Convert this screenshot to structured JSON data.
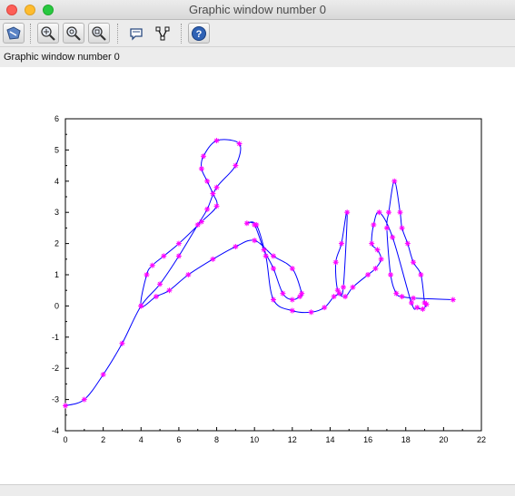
{
  "window": {
    "title": "Graphic window number 0"
  },
  "info": {
    "text": "Graphic window number 0"
  },
  "toolbar": {
    "buttons": [
      {
        "name": "rotate-tool-button",
        "icon": "rotate-icon"
      },
      {
        "name": "zoom-in-button",
        "icon": "zoom-in-icon"
      },
      {
        "name": "zoom-out-button",
        "icon": "zoom-out-icon"
      },
      {
        "name": "zoom-fit-button",
        "icon": "zoom-fit-icon"
      },
      {
        "name": "datatip-button",
        "icon": "speech-bubble-icon"
      },
      {
        "name": "datatip-edit-button",
        "icon": "polyline-edit-icon"
      },
      {
        "name": "help-button",
        "icon": "help-icon"
      }
    ]
  },
  "colors": {
    "curve": "#0000ff",
    "marker": "#ff00ff"
  },
  "chart_data": {
    "type": "line",
    "title": "",
    "xlabel": "",
    "ylabel": "",
    "xlim": [
      0,
      22
    ],
    "ylim": [
      -4,
      6
    ],
    "xticks": [
      "0",
      "2",
      "4",
      "6",
      "8",
      "10",
      "12",
      "14",
      "16",
      "18",
      "20",
      "22"
    ],
    "yticks": [
      "-4",
      "-3",
      "-2",
      "-1",
      "0",
      "1",
      "2",
      "3",
      "4",
      "5",
      "6"
    ],
    "grid": false,
    "legend": "none",
    "series": [
      {
        "marker": "*",
        "x": [
          0,
          1,
          2,
          3,
          4,
          5,
          6,
          7,
          7.5,
          8,
          9,
          9.2,
          8,
          7.3,
          7.2,
          7.5,
          7.8,
          8,
          7.2,
          6,
          5.2,
          4.6,
          4.3,
          4,
          4.8,
          5.5,
          6.5,
          7.8,
          9,
          10,
          11,
          12,
          12.5,
          12.4,
          12,
          11.5,
          11,
          10.5,
          10,
          9.6,
          10.1,
          10.6,
          11,
          12,
          13,
          13.7,
          14.2,
          14.5,
          14.7,
          14.9,
          14.6,
          14.3,
          14.4,
          14.8,
          15.2,
          16,
          16.4,
          16.7,
          16.5,
          16.2,
          16.3,
          16.6,
          17.3,
          18.3,
          18.6,
          18.9,
          19.1,
          19,
          18.8,
          18.4,
          18.1,
          17.8,
          17.7,
          17.4,
          17.1,
          17.0,
          17.2,
          17.5,
          17.8,
          18.4,
          20.5
        ],
        "y": [
          -3.2,
          -3,
          -2.2,
          -1.2,
          0,
          0.7,
          1.6,
          2.6,
          3.1,
          3.8,
          4.5,
          5.2,
          5.3,
          4.8,
          4.4,
          4,
          3.6,
          3.2,
          2.7,
          2,
          1.6,
          1.3,
          1,
          0,
          0.3,
          0.5,
          1,
          1.5,
          1.9,
          2.1,
          1.6,
          1.2,
          0.4,
          0.3,
          0.2,
          0.4,
          1.2,
          1.8,
          2.6,
          2.65,
          2.6,
          1.6,
          0.2,
          -0.15,
          -0.2,
          -0.05,
          0.3,
          0.4,
          0.6,
          3.0,
          2.0,
          1.4,
          0.5,
          0.3,
          0.6,
          1.0,
          1.2,
          1.5,
          1.8,
          2.0,
          2.6,
          3.0,
          2.2,
          0.1,
          -0.05,
          -0.1,
          0.05,
          0.1,
          1.0,
          1.4,
          2.0,
          2.5,
          3.0,
          4.0,
          3.0,
          2.5,
          1.0,
          0.4,
          0.3,
          0.25,
          0.2
        ]
      }
    ]
  }
}
